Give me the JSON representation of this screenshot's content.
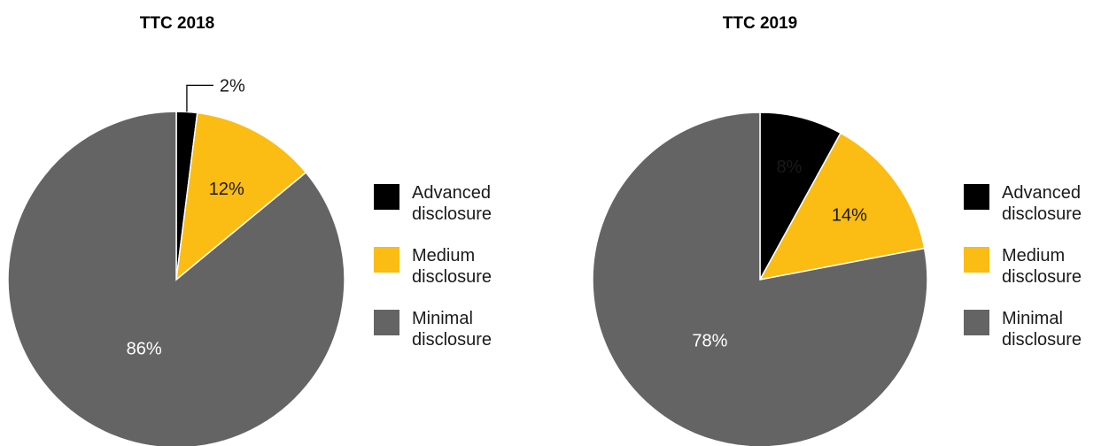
{
  "chart_data": [
    {
      "type": "pie",
      "title": "TTC 2018",
      "categories": [
        "Advanced disclosure",
        "Medium disclosure",
        "Minimal disclosure"
      ],
      "values": [
        2,
        12,
        86
      ],
      "data_labels": [
        "2%",
        "12%",
        "86%"
      ],
      "colors": [
        "#000000",
        "#fbbc13",
        "#646464"
      ],
      "legend": "right"
    },
    {
      "type": "pie",
      "title": "TTC 2019",
      "categories": [
        "Advanced disclosure",
        "Medium disclosure",
        "Minimal disclosure"
      ],
      "values": [
        8,
        14,
        78
      ],
      "data_labels": [
        "8%",
        "14%",
        "78%"
      ],
      "colors": [
        "#000000",
        "#fbbc13",
        "#646464"
      ],
      "legend": "right"
    }
  ]
}
